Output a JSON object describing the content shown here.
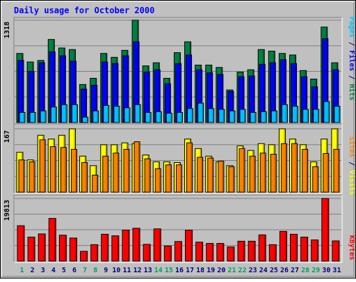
{
  "chart_data": {
    "type": "bar",
    "title": "Daily usage for October 2000",
    "categories": [
      "1",
      "2",
      "3",
      "4",
      "5",
      "6",
      "7",
      "8",
      "9",
      "10",
      "11",
      "12",
      "13",
      "14",
      "15",
      "16",
      "17",
      "18",
      "19",
      "20",
      "21",
      "22",
      "23",
      "24",
      "25",
      "26",
      "27",
      "28",
      "29",
      "30",
      "31"
    ],
    "weekend_days": [
      "1",
      "7",
      "8",
      "14",
      "15",
      "21",
      "22",
      "28",
      "29"
    ],
    "colors": {
      "title": "#0000ff",
      "hits": "#008040",
      "files": "#0000ff",
      "pages": "#00c0ff",
      "visits": "#ffff00",
      "sites": "#ff8000",
      "kbytes": "#ff0000",
      "weekday_label": "#000080",
      "weekend_label": "#00a060",
      "panel_bg": "#c0c0c0",
      "frame_bg": "#c0c0c0"
    },
    "panels": [
      {
        "name": "hits_files_pages",
        "max_label": "1318",
        "ylim": [
          0,
          1318
        ],
        "legend_parts": [
          {
            "text": "Pages",
            "color": "#00c0ff"
          },
          {
            "text": " / ",
            "color": "#000080"
          },
          {
            "text": "Files",
            "color": "#0000ff"
          },
          {
            "text": " / ",
            "color": "#000080"
          },
          {
            "text": "Hits",
            "color": "#008040"
          }
        ],
        "series": [
          {
            "name": "Hits",
            "color": "#008040",
            "values": [
              890,
              780,
              800,
              1070,
              960,
              940,
              490,
              570,
              890,
              840,
              930,
              1318,
              730,
              770,
              570,
              900,
              1040,
              740,
              740,
              710,
              420,
              650,
              680,
              940,
              920,
              890,
              870,
              670,
              560,
              1230,
              770
            ]
          },
          {
            "name": "Files",
            "color": "#0000ff",
            "values": [
              800,
              660,
              770,
              910,
              860,
              790,
              430,
              480,
              780,
              760,
              860,
              1040,
              650,
              680,
              500,
              760,
              870,
              680,
              640,
              620,
              400,
              590,
              600,
              750,
              770,
              810,
              760,
              590,
              460,
              1080,
              680
            ]
          },
          {
            "name": "Pages",
            "color": "#00c0ff",
            "values": [
              130,
              130,
              150,
              200,
              230,
              230,
              70,
              150,
              220,
              210,
              190,
              230,
              130,
              140,
              120,
              130,
              180,
              250,
              180,
              170,
              150,
              170,
              130,
              140,
              150,
              230,
              210,
              170,
              170,
              270,
              210
            ]
          }
        ]
      },
      {
        "name": "visits_sites",
        "max_label": "167",
        "ylim": [
          0,
          167
        ],
        "legend_parts": [
          {
            "text": "Sites",
            "color": "#ff8000"
          },
          {
            "text": " / ",
            "color": "#000080"
          },
          {
            "text": "Visits",
            "color": "#ffff00"
          }
        ],
        "series": [
          {
            "name": "Visits",
            "color": "#ffff00",
            "values": [
              105,
              85,
              150,
              140,
              150,
              167,
              95,
              70,
              125,
              125,
              130,
              128,
              98,
              80,
              80,
              78,
              140,
              115,
              95,
              80,
              70,
              122,
              110,
              128,
              125,
              167,
              140,
              125,
              80,
              140,
              167
            ]
          },
          {
            "name": "Sites",
            "color": "#ff8000",
            "values": [
              85,
              80,
              138,
              120,
              118,
              113,
              78,
              45,
              95,
              103,
              113,
              133,
              88,
              62,
              72,
              72,
              130,
              92,
              90,
              82,
              67,
              115,
              95,
              103,
              100,
              128,
              128,
              113,
              67,
              102,
              113
            ]
          }
        ]
      },
      {
        "name": "kbytes",
        "max_label": "19813",
        "ylim": [
          0,
          19813
        ],
        "legend_parts": [
          {
            "text": "KBytes",
            "color": "#ff0000"
          }
        ],
        "series": [
          {
            "name": "KBytes",
            "color": "#ff0000",
            "values": [
              11200,
              7600,
              8600,
              13500,
              8200,
              7300,
              3100,
              5200,
              8500,
              8000,
              9800,
              10400,
              5300,
              10200,
              4800,
              6200,
              9800,
              6000,
              5600,
              5600,
              4500,
              6300,
              6300,
              8300,
              5200,
              9400,
              8500,
              7600,
              6700,
              19813,
              6400
            ]
          }
        ]
      }
    ]
  }
}
